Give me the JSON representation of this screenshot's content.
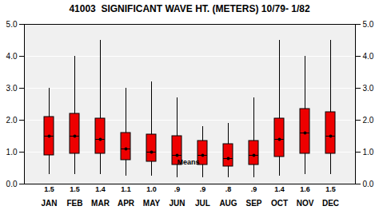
{
  "chart_data": {
    "type": "box",
    "title": "41003  SIGNIFICANT WAVE HT. (METERS) 10/79- 1/82",
    "categories": [
      "JAN",
      "FEB",
      "MAR",
      "APR",
      "MAY",
      "JUN",
      "JUL",
      "AUG",
      "SEP",
      "OCT",
      "NOV",
      "DEC"
    ],
    "q1": [
      0.9,
      0.95,
      0.95,
      0.75,
      0.7,
      0.6,
      0.6,
      0.55,
      0.6,
      0.85,
      0.95,
      0.95
    ],
    "q3": [
      2.1,
      2.2,
      2.05,
      1.6,
      1.55,
      1.5,
      1.35,
      1.25,
      1.35,
      2.05,
      2.35,
      2.25
    ],
    "whisker_low": [
      0.3,
      0.3,
      0.3,
      0.25,
      0.25,
      0.2,
      0.2,
      0.2,
      0.2,
      0.25,
      0.3,
      0.3
    ],
    "whisker_high": [
      3.0,
      4.0,
      4.5,
      3.0,
      3.2,
      2.7,
      1.8,
      1.9,
      2.7,
      4.5,
      4.0,
      4.5
    ],
    "values": [
      1.5,
      1.5,
      1.4,
      1.1,
      1.0,
      0.9,
      0.9,
      0.8,
      0.9,
      1.4,
      1.6,
      1.5
    ],
    "value_labels": [
      "1.5",
      "1.5",
      "1.4",
      "1.1",
      "1.0",
      ".9",
      ".9",
      ".8",
      ".9",
      "1.4",
      "1.6",
      "1.5"
    ],
    "data_labels": true,
    "color": "#EE0000",
    "ylim": [
      0,
      5
    ],
    "yticks": [
      0,
      1,
      2,
      3,
      4,
      5
    ],
    "grid": true,
    "annotations": [
      {
        "text": "Means",
        "x": "JUN",
        "y": 0.62
      }
    ]
  }
}
